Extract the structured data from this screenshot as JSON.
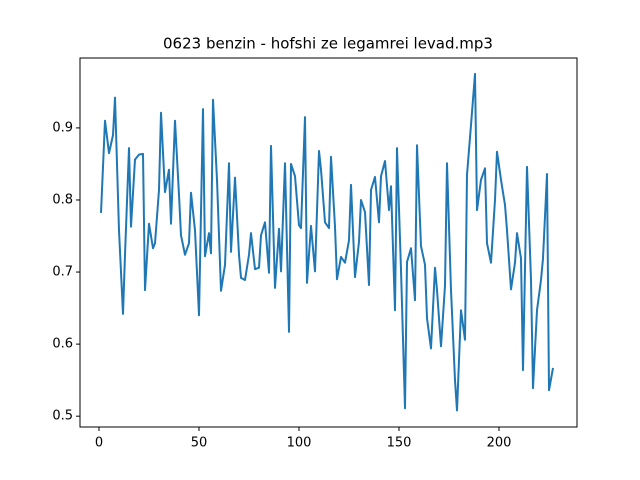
{
  "chart_data": {
    "type": "line",
    "title": "0623 benzin - hofshi ze legamrei levad.mp3",
    "x": [
      1,
      3,
      5,
      7,
      8,
      10,
      12,
      13,
      15,
      16,
      18,
      20,
      22,
      23,
      25,
      27,
      28,
      30,
      31,
      33,
      35,
      36,
      38,
      40,
      41,
      43,
      45,
      46,
      48,
      50,
      52,
      53,
      55,
      56,
      57,
      59,
      61,
      63,
      65,
      66,
      68,
      70,
      71,
      73,
      75,
      76,
      78,
      80,
      81,
      83,
      85,
      86,
      88,
      90,
      91,
      93,
      95,
      96,
      98,
      100,
      101,
      103,
      104,
      106,
      108,
      110,
      111,
      113,
      115,
      116,
      118,
      119,
      121,
      123,
      125,
      126,
      128,
      130,
      131,
      133,
      135,
      136,
      138,
      140,
      141,
      143,
      145,
      146,
      148,
      149,
      151,
      153,
      154,
      156,
      158,
      159,
      161,
      163,
      164,
      166,
      168,
      169,
      171,
      173,
      174,
      176,
      178,
      179,
      181,
      183,
      184,
      186,
      188,
      189,
      191,
      193,
      194,
      196,
      198,
      199,
      201,
      203,
      204,
      206,
      208,
      209,
      211,
      212,
      214,
      216,
      217,
      219,
      221,
      222,
      224,
      225,
      227
    ],
    "series": [
      {
        "color": "#1f77b4",
        "values": [
          0.782,
          0.91,
          0.865,
          0.89,
          0.942,
          0.758,
          0.642,
          0.724,
          0.872,
          0.763,
          0.856,
          0.863,
          0.864,
          0.675,
          0.767,
          0.733,
          0.74,
          0.814,
          0.921,
          0.811,
          0.842,
          0.767,
          0.91,
          0.807,
          0.751,
          0.724,
          0.74,
          0.81,
          0.758,
          0.64,
          0.926,
          0.722,
          0.754,
          0.726,
          0.939,
          0.828,
          0.674,
          0.71,
          0.851,
          0.728,
          0.831,
          0.724,
          0.692,
          0.689,
          0.724,
          0.754,
          0.704,
          0.706,
          0.751,
          0.769,
          0.699,
          0.875,
          0.678,
          0.76,
          0.701,
          0.851,
          0.617,
          0.85,
          0.833,
          0.765,
          0.761,
          0.915,
          0.685,
          0.764,
          0.701,
          0.868,
          0.842,
          0.769,
          0.761,
          0.86,
          0.763,
          0.69,
          0.721,
          0.713,
          0.744,
          0.821,
          0.693,
          0.742,
          0.8,
          0.783,
          0.682,
          0.814,
          0.832,
          0.769,
          0.833,
          0.854,
          0.786,
          0.819,
          0.647,
          0.872,
          0.703,
          0.511,
          0.714,
          0.733,
          0.661,
          0.876,
          0.736,
          0.71,
          0.636,
          0.594,
          0.706,
          0.675,
          0.597,
          0.681,
          0.851,
          0.675,
          0.55,
          0.508,
          0.647,
          0.606,
          0.835,
          0.904,
          0.975,
          0.786,
          0.828,
          0.844,
          0.74,
          0.713,
          0.8,
          0.867,
          0.828,
          0.793,
          0.758,
          0.676,
          0.713,
          0.754,
          0.719,
          0.564,
          0.846,
          0.689,
          0.539,
          0.647,
          0.689,
          0.719,
          0.836,
          0.536,
          0.567
        ]
      }
    ],
    "xlim": [
      -9.5,
      239
    ],
    "ylim": [
      0.485,
      0.997
    ],
    "xticks": [
      0,
      50,
      100,
      150,
      200
    ],
    "yticks": [
      0.5,
      0.6,
      0.7,
      0.8,
      0.9
    ]
  }
}
